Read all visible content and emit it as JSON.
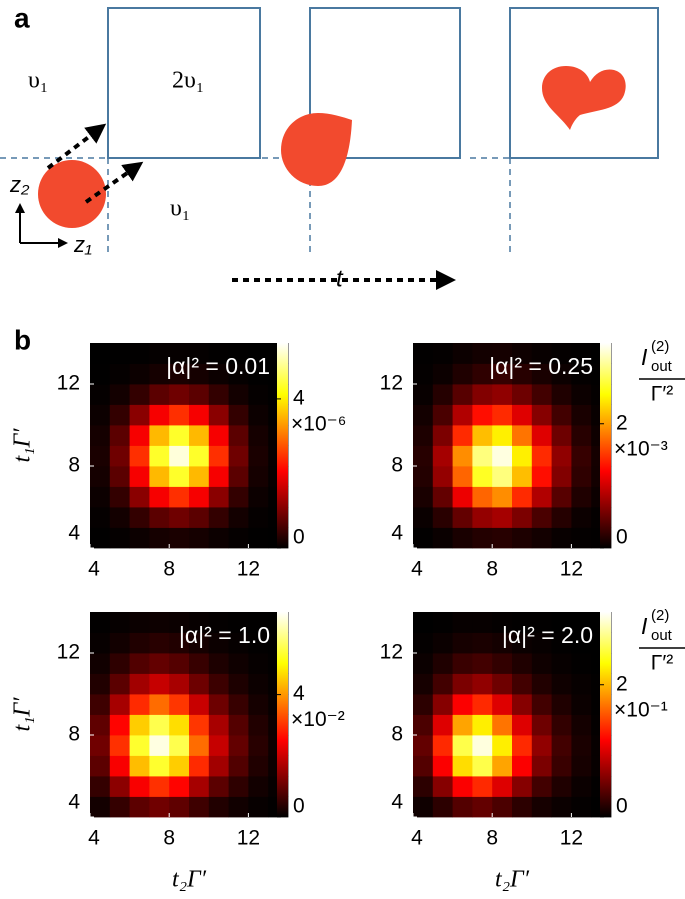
{
  "panel_labels": [
    "a",
    "b"
  ],
  "diagram": {
    "labels": {
      "region_left": "υ₁",
      "region_square": "2υ₁",
      "region_bottom": "υ₁",
      "axis_z2": "z₂",
      "axis_z1": "z₁",
      "time": "t"
    }
  },
  "chart_data": [
    {
      "type": "heatmap",
      "title": "|α|² = 0.01",
      "colormap": "hot",
      "xbins": [
        4,
        5,
        6,
        7,
        8,
        9,
        10,
        11,
        12,
        13,
        14
      ],
      "ybins": [
        4,
        5,
        6,
        7,
        8,
        9,
        10,
        11,
        12,
        13,
        14
      ],
      "xlim": [
        4,
        14
      ],
      "ylim": [
        4,
        14
      ],
      "xticks": [
        4,
        8,
        12
      ],
      "yticks": [
        4,
        8,
        12
      ],
      "ylabel": "t₁Γ′",
      "clim": [
        0,
        5.5
      ],
      "cticks": [
        0,
        4
      ],
      "cexponent": "×10⁻⁶",
      "values": [
        [
          0.01,
          0.04,
          0.1,
          0.17,
          0.21,
          0.17,
          0.1,
          0.04,
          0.01,
          0
        ],
        [
          0.04,
          0.15,
          0.41,
          0.74,
          0.9,
          0.74,
          0.41,
          0.15,
          0.04,
          0.01
        ],
        [
          0.1,
          0.41,
          1.12,
          2,
          2.44,
          2,
          1.12,
          0.41,
          0.1,
          0.02
        ],
        [
          0.17,
          0.74,
          2,
          3.56,
          4.35,
          3.56,
          2,
          0.74,
          0.17,
          0.04
        ],
        [
          0.21,
          0.9,
          2.44,
          4.35,
          5.3,
          4.35,
          2.44,
          0.9,
          0.21,
          0.05
        ],
        [
          0.17,
          0.74,
          2,
          3.56,
          4.35,
          3.56,
          2,
          0.74,
          0.17,
          0.04
        ],
        [
          0.1,
          0.41,
          1.12,
          2,
          2.44,
          2,
          1.12,
          0.41,
          0.1,
          0.02
        ],
        [
          0.04,
          0.15,
          0.41,
          0.74,
          0.9,
          0.74,
          0.41,
          0.15,
          0.04,
          0.01
        ],
        [
          0.01,
          0.04,
          0.1,
          0.17,
          0.21,
          0.17,
          0.1,
          0.04,
          0.01,
          0
        ],
        [
          0,
          0.01,
          0.02,
          0.04,
          0.05,
          0.04,
          0.02,
          0.01,
          0,
          0
        ]
      ]
    },
    {
      "type": "heatmap",
      "title": "|α|² = 0.25",
      "colormap": "hot",
      "xbins": [
        4,
        5,
        6,
        7,
        8,
        9,
        10,
        11,
        12,
        13,
        14
      ],
      "ybins": [
        4,
        5,
        6,
        7,
        8,
        9,
        10,
        11,
        12,
        13,
        14
      ],
      "xlim": [
        4,
        14
      ],
      "ylim": [
        4,
        14
      ],
      "xticks": [
        4,
        8,
        12
      ],
      "yticks": [
        4,
        8,
        12
      ],
      "clim": [
        0,
        3.3
      ],
      "cticks": [
        0,
        2
      ],
      "cexponent": "×10⁻³",
      "colorbar_label": {
        "symbol": "I",
        "superscript": "(2)",
        "subscript": "out",
        "denominator": "Γ′²"
      },
      "values": [
        [
          0.01,
          0.05,
          0.12,
          0.17,
          0.19,
          0.14,
          0.09,
          0.04,
          0.02,
          0.01
        ],
        [
          0.05,
          0.2,
          0.48,
          0.72,
          0.8,
          0.6,
          0.36,
          0.18,
          0.06,
          0.02
        ],
        [
          0.12,
          0.48,
          1.15,
          1.73,
          1.92,
          1.44,
          0.86,
          0.42,
          0.15,
          0.06
        ],
        [
          0.17,
          0.72,
          1.73,
          2.59,
          2.88,
          2.16,
          1.3,
          0.63,
          0.23,
          0.09
        ],
        [
          0.19,
          0.8,
          1.92,
          2.88,
          3.2,
          2.4,
          1.44,
          0.7,
          0.26,
          0.1
        ],
        [
          0.14,
          0.6,
          1.44,
          2.16,
          2.4,
          1.8,
          1.08,
          0.53,
          0.19,
          0.07
        ],
        [
          0.09,
          0.36,
          0.86,
          1.3,
          1.44,
          1.08,
          0.65,
          0.32,
          0.12,
          0.04
        ],
        [
          0.04,
          0.18,
          0.42,
          0.63,
          0.7,
          0.53,
          0.32,
          0.15,
          0.06,
          0.02
        ],
        [
          0.02,
          0.06,
          0.15,
          0.23,
          0.26,
          0.19,
          0.12,
          0.06,
          0.02,
          0.01
        ],
        [
          0.01,
          0.02,
          0.06,
          0.09,
          0.1,
          0.07,
          0.04,
          0.02,
          0.01,
          0
        ]
      ]
    },
    {
      "type": "heatmap",
      "title": "|α|² = 1.0",
      "colormap": "hot",
      "xbins": [
        4,
        5,
        6,
        7,
        8,
        9,
        10,
        11,
        12,
        13,
        14
      ],
      "ybins": [
        4,
        5,
        6,
        7,
        8,
        9,
        10,
        11,
        12,
        13,
        14
      ],
      "xlim": [
        4,
        14
      ],
      "ylim": [
        4,
        14
      ],
      "xticks": [
        4,
        8,
        12
      ],
      "yticks": [
        4,
        8,
        12
      ],
      "xlabel": "t₂Γ′",
      "ylabel": "t₁Γ′",
      "clim": [
        0,
        6.7
      ],
      "cticks": [
        0,
        4
      ],
      "cexponent": "×10⁻²",
      "values": [
        [
          0.19,
          0.51,
          0.91,
          1.1,
          0.94,
          0.61,
          0.33,
          0.17,
          0.07,
          0.02
        ],
        [
          0.51,
          1.38,
          2.45,
          2.99,
          2.54,
          1.64,
          0.9,
          0.45,
          0.18,
          0.06
        ],
        [
          0.91,
          2.45,
          4.37,
          5.33,
          4.53,
          2.93,
          1.6,
          0.8,
          0.32,
          0.11
        ],
        [
          1.1,
          2.99,
          5.33,
          6.5,
          5.53,
          3.58,
          1.95,
          0.98,
          0.39,
          0.13
        ],
        [
          0.94,
          2.54,
          4.53,
          5.53,
          4.7,
          3.04,
          1.66,
          0.83,
          0.33,
          0.11
        ],
        [
          0.61,
          1.64,
          2.93,
          3.58,
          3.04,
          1.97,
          1.07,
          0.54,
          0.21,
          0.07
        ],
        [
          0.33,
          0.9,
          1.6,
          1.95,
          1.66,
          1.07,
          0.59,
          0.29,
          0.12,
          0.04
        ],
        [
          0.17,
          0.45,
          0.8,
          0.98,
          0.83,
          0.54,
          0.29,
          0.15,
          0.06,
          0.02
        ],
        [
          0.07,
          0.18,
          0.32,
          0.39,
          0.33,
          0.21,
          0.12,
          0.06,
          0.02,
          0.01
        ],
        [
          0.02,
          0.06,
          0.11,
          0.13,
          0.11,
          0.07,
          0.04,
          0.02,
          0.01,
          0
        ]
      ]
    },
    {
      "type": "heatmap",
      "title": "|α|² = 2.0",
      "colormap": "hot",
      "xbins": [
        4,
        5,
        6,
        7,
        8,
        9,
        10,
        11,
        12,
        13,
        14
      ],
      "ybins": [
        4,
        5,
        6,
        7,
        8,
        9,
        10,
        11,
        12,
        13,
        14
      ],
      "xlim": [
        4,
        14
      ],
      "ylim": [
        4,
        14
      ],
      "xticks": [
        4,
        8,
        12
      ],
      "yticks": [
        4,
        8,
        12
      ],
      "xlabel": "t₂Γ′",
      "clim": [
        0,
        3.1
      ],
      "cticks": [
        0,
        2
      ],
      "cexponent": "×10⁻¹",
      "colorbar_label": {
        "symbol": "I",
        "superscript": "(2)",
        "subscript": "out",
        "denominator": "Γ′²"
      },
      "values": [
        [
          0.07,
          0.2,
          0.38,
          0.45,
          0.34,
          0.2,
          0.1,
          0.05,
          0.02,
          0
        ],
        [
          0.2,
          0.61,
          1.15,
          1.35,
          1.01,
          0.61,
          0.3,
          0.14,
          0.05,
          0.01
        ],
        [
          0.38,
          1.15,
          2.17,
          2.55,
          1.91,
          1.15,
          0.56,
          0.26,
          0.1,
          0.03
        ],
        [
          0.45,
          1.35,
          2.55,
          3,
          2.25,
          1.35,
          0.66,
          0.3,
          0.12,
          0.03
        ],
        [
          0.34,
          1.01,
          1.91,
          2.25,
          1.69,
          1.01,
          0.5,
          0.23,
          0.09,
          0.02
        ],
        [
          0.2,
          0.61,
          1.15,
          1.35,
          1.01,
          0.61,
          0.3,
          0.14,
          0.05,
          0.01
        ],
        [
          0.1,
          0.3,
          0.56,
          0.66,
          0.5,
          0.3,
          0.15,
          0.07,
          0.03,
          0.01
        ],
        [
          0.05,
          0.14,
          0.26,
          0.3,
          0.23,
          0.14,
          0.07,
          0.03,
          0.01,
          0
        ],
        [
          0.02,
          0.05,
          0.1,
          0.12,
          0.09,
          0.05,
          0.03,
          0.01,
          0,
          0
        ],
        [
          0,
          0.01,
          0.03,
          0.03,
          0.02,
          0.01,
          0.01,
          0,
          0,
          0
        ]
      ]
    }
  ]
}
